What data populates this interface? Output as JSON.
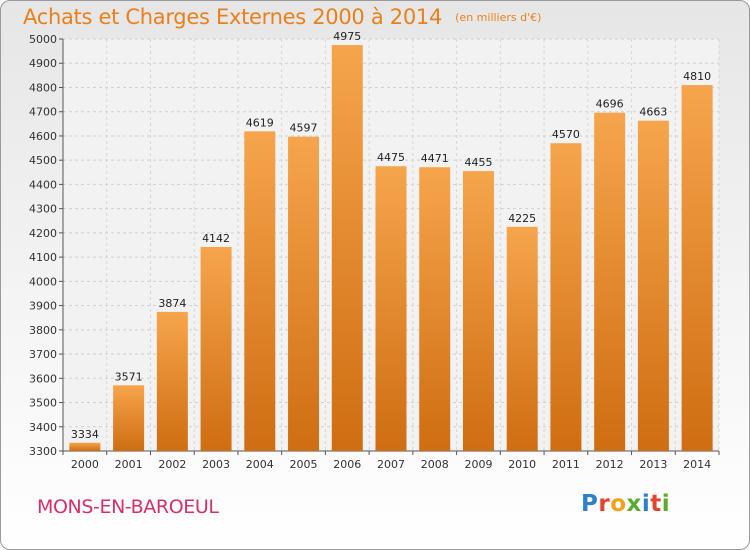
{
  "chart_data": {
    "type": "bar",
    "title": "Achats et Charges Externes 2000 à 2014",
    "unit_note": "(en milliers d'€)",
    "categories": [
      "2000",
      "2001",
      "2002",
      "2003",
      "2004",
      "2005",
      "2006",
      "2007",
      "2008",
      "2009",
      "2010",
      "2011",
      "2012",
      "2013",
      "2014"
    ],
    "values": [
      3334,
      3571,
      3874,
      4142,
      4619,
      4597,
      4975,
      4475,
      4471,
      4455,
      4225,
      4570,
      4696,
      4663,
      4810
    ],
    "ylim": [
      3300,
      5000
    ],
    "yticks": [
      3300,
      3400,
      3500,
      3600,
      3700,
      3800,
      3900,
      4000,
      4100,
      4200,
      4300,
      4400,
      4500,
      4600,
      4700,
      4800,
      4900,
      5000
    ],
    "grid": true,
    "bar_color_top": "#f6a54c",
    "bar_color_bottom": "#cf6d12"
  },
  "place": "MONS-EN-BAROEUL",
  "brand": {
    "letters": [
      "P",
      "r",
      "o",
      "x",
      "i",
      "t",
      "i"
    ],
    "colors": [
      "#2f7fc9",
      "#e5432e",
      "#f2a11c",
      "#5aaa2c",
      "#2f7fc9",
      "#e5432e",
      "#5aaa2c"
    ]
  },
  "colors": {
    "title": "#e8801b",
    "place": "#d4306a"
  }
}
